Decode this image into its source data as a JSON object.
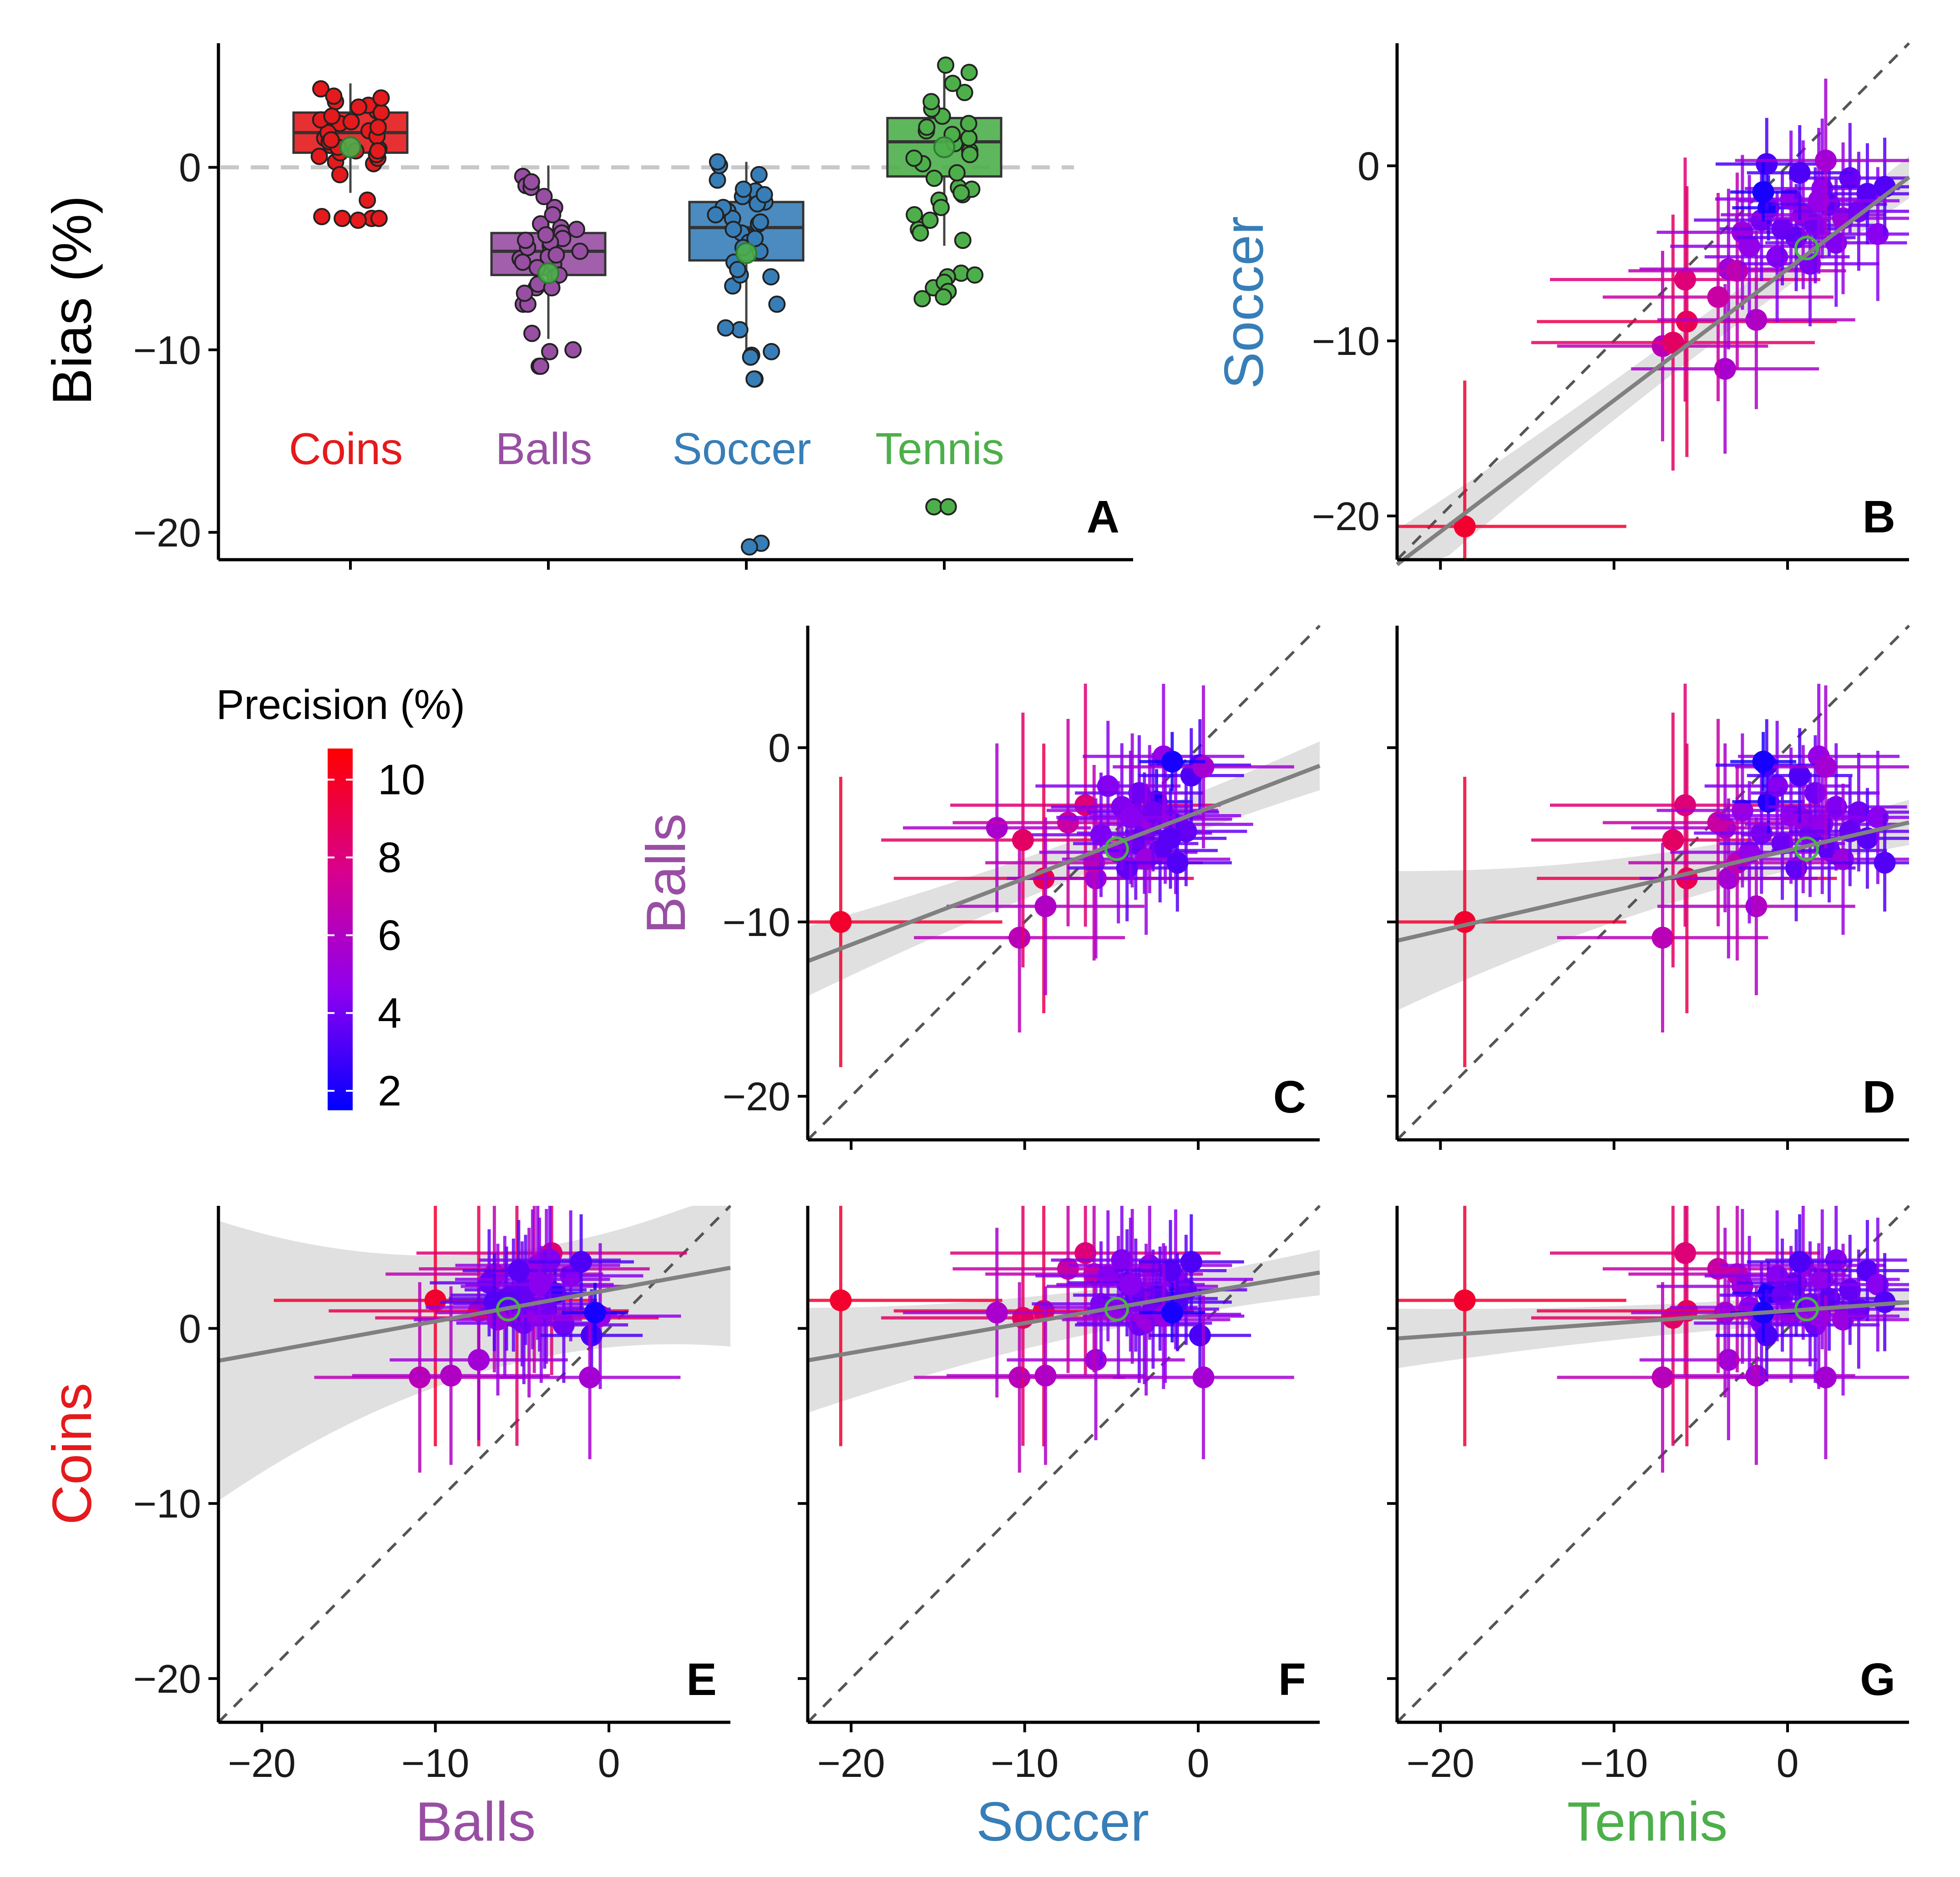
{
  "chart_data": {
    "type": "scatter",
    "title": "",
    "colors": {
      "coins": "#e41a1c",
      "balls": "#984ea3",
      "soccer": "#377eb8",
      "tennis": "#4daf4a",
      "reference_line": "#c8c8c8",
      "fit_line": "#808080",
      "fit_band": "#dedede",
      "identity_line": "#555555",
      "mean_marker": "#4daf4a"
    },
    "legend": {
      "title": "Precision (%)",
      "ticks": [
        "10",
        "8",
        "6",
        "4",
        "2"
      ],
      "tick_values": [
        10,
        8,
        6,
        4,
        2
      ],
      "range": [
        1.5,
        10.8
      ],
      "gradient": [
        "#0000ff",
        "#8f00f0",
        "#d8008e",
        "#ff0000"
      ],
      "placement": "left-middle"
    },
    "panel_a": {
      "letter": "A",
      "type": "box",
      "ylabel": "Bias (%)",
      "ylim": [
        -21.5,
        6.8
      ],
      "yticks": [
        0,
        -10,
        -20
      ],
      "ytick_labels": [
        "0",
        "−10",
        "−20"
      ],
      "reference_y": 0,
      "categories": [
        "Coins",
        "Balls",
        "Soccer",
        "Tennis"
      ],
      "boxes": [
        {
          "name": "Coins",
          "q1": 0.8,
          "median": 1.9,
          "q3": 3.0,
          "whisker_low": -1.4,
          "whisker_high": 4.6,
          "mean": 1.1
        },
        {
          "name": "Balls",
          "q1": -5.9,
          "median": -4.6,
          "q3": -3.6,
          "whisker_low": -9.4,
          "whisker_high": 0.1,
          "mean": -5.8
        },
        {
          "name": "Soccer",
          "q1": -5.1,
          "median": -3.3,
          "q3": -1.9,
          "whisker_low": -10.0,
          "whisker_high": 0.3,
          "mean": -4.7
        },
        {
          "name": "Tennis",
          "q1": -0.5,
          "median": 1.4,
          "q3": 2.7,
          "whisker_low": -4.3,
          "whisker_high": 5.9,
          "mean": 1.1
        }
      ],
      "outliers": [
        {
          "name": "Coins",
          "values": [
            -2.8,
            -2.9
          ]
        },
        {
          "name": "Balls",
          "values": [
            -10.1,
            -10.9
          ]
        },
        {
          "name": "Soccer",
          "values": [
            -10.4,
            -11.6,
            -20.8
          ]
        },
        {
          "name": "Tennis",
          "values": [
            -6.0,
            -6.3,
            -6.8,
            -7.1,
            -18.6
          ]
        }
      ]
    },
    "scatter_axes": {
      "lim": [
        -22.5,
        7.0
      ],
      "ticks": [
        -20,
        -10,
        0
      ],
      "tick_labels": [
        "−20",
        "−10",
        "0"
      ]
    },
    "scatter_panels": [
      {
        "letter": "B",
        "x": "Tennis",
        "y": "Soccer",
        "fit": {
          "intercept": -5.9,
          "slope": 0.75,
          "band": [
            2.0,
            0.5,
            1.2
          ]
        },
        "mean": [
          1.1,
          -4.7
        ]
      },
      {
        "letter": "C",
        "x": "Soccer",
        "y": "Balls",
        "fit": {
          "intercept": -3.7,
          "slope": 0.38,
          "band": [
            2.0,
            0.5,
            1.4
          ]
        },
        "mean": [
          -4.7,
          -5.8
        ]
      },
      {
        "letter": "D",
        "x": "Tennis",
        "y": "Balls",
        "fit": {
          "intercept": -5.9,
          "slope": 0.23,
          "band": [
            4.0,
            0.5,
            1.3
          ]
        },
        "mean": [
          1.1,
          -5.8
        ]
      },
      {
        "letter": "E",
        "x": "Balls",
        "y": "Coins",
        "fit": {
          "intercept": 2.2,
          "slope": 0.18,
          "band": [
            8.0,
            0.6,
            4.5
          ]
        },
        "mean": [
          -5.8,
          1.1
        ]
      },
      {
        "letter": "F",
        "x": "Soccer",
        "y": "Coins",
        "fit": {
          "intercept": 2.0,
          "slope": 0.17,
          "band": [
            3.0,
            0.5,
            1.3
          ]
        },
        "mean": [
          -4.7,
          1.1
        ]
      },
      {
        "letter": "G",
        "x": "Tennis",
        "y": "Coins",
        "fit": {
          "intercept": 1.0,
          "slope": 0.07,
          "band": [
            1.7,
            0.5,
            0.9
          ]
        },
        "mean": [
          1.1,
          1.1
        ]
      }
    ],
    "subjects": [
      {
        "coins": 1.6,
        "balls": -10.0,
        "soccer": -20.6,
        "tennis": -18.6,
        "precision": 9.8
      },
      {
        "coins": -2.8,
        "balls": -10.9,
        "soccer": -10.3,
        "tennis": -7.2,
        "precision": 6.4
      },
      {
        "coins": 1.0,
        "balls": -7.5,
        "soccer": -8.9,
        "tennis": -5.8,
        "precision": 9.1
      },
      {
        "coins": 4.3,
        "balls": -3.3,
        "soccer": -6.5,
        "tennis": -5.9,
        "precision": 8.2
      },
      {
        "coins": 0.6,
        "balls": -5.3,
        "soccer": -10.1,
        "tennis": -6.6,
        "precision": 8.6
      },
      {
        "coins": -2.7,
        "balls": -9.1,
        "soccer": -8.8,
        "tennis": -1.8,
        "precision": 6.0
      },
      {
        "coins": -1.8,
        "balls": -7.5,
        "soccer": -5.9,
        "tennis": -3.4,
        "precision": 5.4
      },
      {
        "coins": 0.9,
        "balls": -4.6,
        "soccer": -11.6,
        "tennis": -3.6,
        "precision": 5.7
      },
      {
        "coins": 3.1,
        "balls": -6.6,
        "soccer": -6.0,
        "tennis": -2.9,
        "precision": 6.6
      },
      {
        "coins": 3.4,
        "balls": -4.3,
        "soccer": -7.5,
        "tennis": -4.0,
        "precision": 7.0
      },
      {
        "coins": 2.4,
        "balls": -3.6,
        "soccer": -3.8,
        "tennis": -2.6,
        "precision": 5.2
      },
      {
        "coins": 1.2,
        "balls": -6.0,
        "soccer": -4.6,
        "tennis": -2.2,
        "precision": 4.8
      },
      {
        "coins": 0.3,
        "balls": -4.9,
        "soccer": -3.1,
        "tennis": -1.5,
        "precision": 4.1
      },
      {
        "coins": 2.0,
        "balls": -3.1,
        "soccer": -2.4,
        "tennis": -1.1,
        "precision": 2.2
      },
      {
        "coins": 3.0,
        "balls": -2.2,
        "soccer": -5.2,
        "tennis": -0.6,
        "precision": 4.4
      },
      {
        "coins": 1.9,
        "balls": -5.5,
        "soccer": -3.6,
        "tennis": -0.3,
        "precision": 3.8
      },
      {
        "coins": 0.8,
        "balls": -3.9,
        "soccer": -1.9,
        "tennis": 0.2,
        "precision": 4.6
      },
      {
        "coins": 2.6,
        "balls": -6.9,
        "soccer": -4.1,
        "tennis": 0.5,
        "precision": 3.6
      },
      {
        "coins": 3.6,
        "balls": -4.1,
        "soccer": -2.8,
        "tennis": 0.9,
        "precision": 5.0
      },
      {
        "coins": 1.4,
        "balls": -5.0,
        "soccer": -5.6,
        "tennis": 1.3,
        "precision": 4.2
      },
      {
        "coins": 0.2,
        "balls": -2.6,
        "soccer": -3.4,
        "tennis": 1.6,
        "precision": 3.9
      },
      {
        "coins": 2.8,
        "balls": -4.4,
        "soccer": -1.3,
        "tennis": 2.0,
        "precision": 4.7
      },
      {
        "coins": 1.7,
        "balls": -5.9,
        "soccer": -2.2,
        "tennis": 2.4,
        "precision": 3.5
      },
      {
        "coins": 3.9,
        "balls": -3.4,
        "soccer": -4.4,
        "tennis": 2.8,
        "precision": 4.3
      },
      {
        "coins": 0.5,
        "balls": -6.4,
        "soccer": -3.0,
        "tennis": 3.2,
        "precision": 5.1
      },
      {
        "coins": 2.2,
        "balls": -4.8,
        "soccer": -0.7,
        "tennis": 3.6,
        "precision": 3.7
      },
      {
        "coins": 1.1,
        "balls": -3.7,
        "soccer": -2.6,
        "tennis": 4.1,
        "precision": 4.0
      },
      {
        "coins": 3.3,
        "balls": -5.2,
        "soccer": -1.6,
        "tennis": 4.6,
        "precision": 3.4
      },
      {
        "coins": 2.5,
        "balls": -4.0,
        "soccer": -3.9,
        "tennis": 5.2,
        "precision": 4.5
      },
      {
        "coins": 1.5,
        "balls": -6.6,
        "soccer": -1.2,
        "tennis": 5.6,
        "precision": 3.3
      },
      {
        "coins": 0.7,
        "balls": -0.5,
        "soccer": -2.0,
        "tennis": 1.8,
        "precision": 4.9
      },
      {
        "coins": -0.4,
        "balls": -1.0,
        "soccer": 0.1,
        "tennis": -1.2,
        "precision": 3.1
      },
      {
        "coins": 3.8,
        "balls": -1.6,
        "soccer": -0.4,
        "tennis": 0.7,
        "precision": 3.2
      },
      {
        "coins": -2.8,
        "balls": -1.1,
        "soccer": 0.3,
        "tennis": 2.2,
        "precision": 5.5
      },
      {
        "coins": 0.9,
        "balls": -0.8,
        "soccer": -1.5,
        "tennis": -1.4,
        "precision": 2.0
      }
    ]
  },
  "axis_titles": {
    "bottom": [
      "Balls",
      "Soccer",
      "Tennis"
    ],
    "left": [
      "Soccer",
      "Balls",
      "Coins"
    ]
  }
}
